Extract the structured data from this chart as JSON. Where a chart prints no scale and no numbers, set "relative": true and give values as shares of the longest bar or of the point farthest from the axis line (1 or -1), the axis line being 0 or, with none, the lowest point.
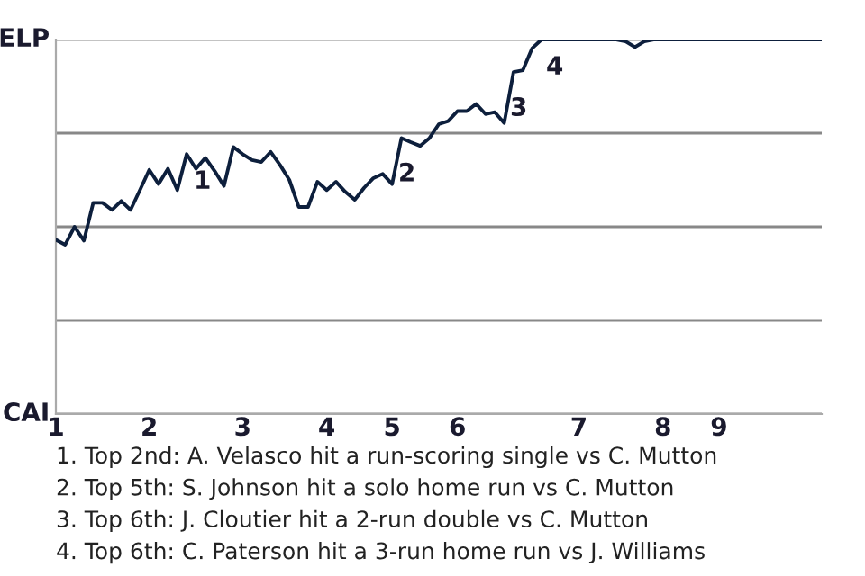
{
  "chart_data": {
    "type": "line",
    "relative": true,
    "categories": [
      "1",
      null,
      null,
      null,
      null,
      null,
      null,
      null,
      null,
      null,
      "2",
      null,
      null,
      null,
      null,
      null,
      null,
      null,
      null,
      null,
      "3",
      null,
      null,
      null,
      null,
      null,
      null,
      null,
      null,
      "4",
      null,
      null,
      null,
      null,
      null,
      null,
      "5",
      null,
      null,
      null,
      null,
      null,
      null,
      "6",
      null,
      null,
      null,
      null,
      null,
      null,
      null,
      null,
      null,
      null,
      null,
      null,
      "7",
      null,
      null,
      null,
      null,
      null,
      null,
      null,
      null,
      "8",
      null,
      null,
      null,
      null,
      null,
      "9",
      null,
      null,
      null,
      null,
      null,
      null,
      null,
      null,
      null,
      null,
      null
    ],
    "series": [
      {
        "color": "#0d1f3c",
        "values": [
          0.465,
          0.452,
          0.5,
          0.463,
          0.564,
          0.564,
          0.545,
          0.569,
          0.545,
          0.598,
          0.652,
          0.614,
          0.655,
          0.598,
          0.694,
          0.655,
          0.684,
          0.649,
          0.609,
          0.713,
          0.694,
          0.678,
          0.673,
          0.7,
          0.665,
          0.625,
          0.553,
          0.553,
          0.62,
          0.598,
          0.62,
          0.593,
          0.572,
          0.604,
          0.63,
          0.641,
          0.614,
          0.737,
          0.726,
          0.716,
          0.737,
          0.774,
          0.782,
          0.809,
          0.809,
          0.828,
          0.801,
          0.806,
          0.777,
          0.913,
          0.918,
          0.977,
          1.0,
          1.0,
          1.0,
          1.0,
          1.0,
          1.0,
          1.0,
          1.0,
          1.0,
          0.995,
          0.98,
          0.995,
          1.0,
          1.0,
          1.0,
          1.0,
          1.0,
          1.0,
          1.0,
          1.0,
          1.0,
          1.0,
          1.0,
          1.0,
          1.0,
          1.0,
          1.0,
          1.0,
          1.0,
          1.0,
          1.0
        ]
      }
    ],
    "grid": "y",
    "annotations": [
      "ELP",
      "CAI",
      "1",
      "2",
      "3",
      "4",
      "1. Top 2nd: A. Velasco hit a run-scoring single vs C. Mutton",
      "2. Top 5th: S. Johnson hit a solo home run vs C. Mutton",
      "3. Top 6th: J. Cloutier hit a 2-run double vs C. Mutton",
      "4. Top 6th: C. Paterson hit a 3-run home run vs J. Williams"
    ]
  }
}
